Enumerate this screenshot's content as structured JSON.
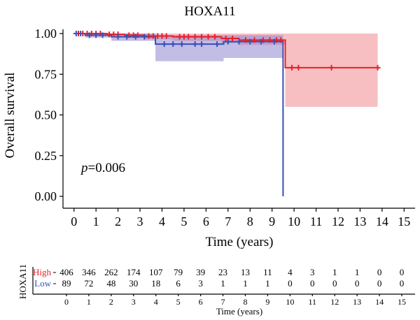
{
  "chart_data": {
    "type": "line",
    "title": "HOXA11",
    "xlabel": "Time (years)",
    "ylabel": "Overall survival",
    "xlim": [
      -0.5,
      15.5
    ],
    "ylim": [
      0,
      1
    ],
    "x_ticks": [
      "0",
      "1",
      "2",
      "3",
      "4",
      "5",
      "6",
      "7",
      "8",
      "9",
      "10",
      "11",
      "12",
      "13",
      "14",
      "15"
    ],
    "y_ticks": [
      "0.00",
      "0.25",
      "0.50",
      "0.75",
      "1.00"
    ],
    "p_label": "p",
    "p_value": "=0.006",
    "series": [
      {
        "name": "High",
        "color": "#e8202a",
        "band_color": "#f08a8f",
        "steps": [
          [
            0,
            1.0
          ],
          [
            1.5,
            0.995
          ],
          [
            2.3,
            0.99
          ],
          [
            3.2,
            0.985
          ],
          [
            4.5,
            0.98
          ],
          [
            6.7,
            0.97
          ],
          [
            7.5,
            0.96
          ],
          [
            9.6,
            0.79
          ],
          [
            13.8,
            0.79
          ]
        ],
        "band": [
          [
            0,
            1.0,
            1.0
          ],
          [
            1.5,
            1.0,
            0.985
          ],
          [
            2.3,
            1.0,
            0.975
          ],
          [
            3.2,
            1.0,
            0.965
          ],
          [
            4.5,
            1.0,
            0.955
          ],
          [
            6.7,
            1.0,
            0.94
          ],
          [
            7.5,
            1.0,
            0.93
          ],
          [
            9.6,
            1.0,
            0.55
          ],
          [
            13.8,
            1.0,
            0.55
          ]
        ],
        "censors": [
          [
            0.2,
            1.0
          ],
          [
            0.4,
            1.0
          ],
          [
            0.6,
            1.0
          ],
          [
            0.8,
            1.0
          ],
          [
            1.0,
            1.0
          ],
          [
            1.2,
            1.0
          ],
          [
            1.6,
            0.995
          ],
          [
            1.8,
            0.995
          ],
          [
            2.0,
            0.995
          ],
          [
            2.5,
            0.99
          ],
          [
            2.7,
            0.99
          ],
          [
            2.9,
            0.99
          ],
          [
            3.4,
            0.985
          ],
          [
            3.6,
            0.985
          ],
          [
            3.8,
            0.985
          ],
          [
            4.0,
            0.985
          ],
          [
            4.2,
            0.985
          ],
          [
            4.8,
            0.98
          ],
          [
            5.0,
            0.98
          ],
          [
            5.2,
            0.98
          ],
          [
            5.5,
            0.98
          ],
          [
            5.8,
            0.98
          ],
          [
            6.1,
            0.98
          ],
          [
            6.4,
            0.98
          ],
          [
            6.9,
            0.97
          ],
          [
            7.2,
            0.97
          ],
          [
            7.8,
            0.96
          ],
          [
            8.2,
            0.96
          ],
          [
            8.6,
            0.96
          ],
          [
            8.9,
            0.96
          ],
          [
            9.2,
            0.96
          ],
          [
            9.4,
            0.96
          ],
          [
            9.9,
            0.79
          ],
          [
            10.2,
            0.79
          ],
          [
            11.7,
            0.79
          ],
          [
            13.8,
            0.79
          ]
        ]
      },
      {
        "name": "Low",
        "color": "#3a4fb5",
        "band_color": "#8f86d0",
        "steps": [
          [
            0,
            1.0
          ],
          [
            0.5,
            0.99
          ],
          [
            1.7,
            0.98
          ],
          [
            3.7,
            0.935
          ],
          [
            6.8,
            0.95
          ],
          [
            9.5,
            0.0
          ]
        ],
        "band": [
          [
            0,
            1.0,
            1.0
          ],
          [
            0.5,
            1.0,
            0.975
          ],
          [
            1.7,
            1.0,
            0.955
          ],
          [
            3.7,
            0.99,
            0.83
          ],
          [
            6.8,
            0.99,
            0.85
          ],
          [
            9.5,
            0.99,
            0.85
          ]
        ],
        "censors": [
          [
            0.1,
            1.0
          ],
          [
            0.3,
            1.0
          ],
          [
            0.7,
            0.99
          ],
          [
            1.0,
            0.99
          ],
          [
            1.3,
            0.99
          ],
          [
            2.0,
            0.98
          ],
          [
            2.4,
            0.98
          ],
          [
            2.8,
            0.98
          ],
          [
            3.2,
            0.98
          ],
          [
            4.1,
            0.935
          ],
          [
            4.5,
            0.935
          ],
          [
            4.9,
            0.935
          ],
          [
            5.5,
            0.935
          ],
          [
            5.8,
            0.935
          ],
          [
            6.5,
            0.935
          ],
          [
            7.0,
            0.95
          ],
          [
            7.5,
            0.95
          ],
          [
            8.0,
            0.95
          ],
          [
            8.5,
            0.95
          ],
          [
            9.1,
            0.95
          ]
        ]
      }
    ],
    "risk_table": {
      "strata_title": "HOXA11",
      "xlabel": "Time (years)",
      "times": [
        "0",
        "1",
        "2",
        "3",
        "4",
        "5",
        "6",
        "7",
        "8",
        "9",
        "10",
        "11",
        "12",
        "13",
        "14",
        "15"
      ],
      "rows": [
        {
          "name": "High",
          "color": "#e8202a",
          "values": [
            "406",
            "346",
            "262",
            "174",
            "107",
            "79",
            "39",
            "23",
            "13",
            "11",
            "4",
            "3",
            "1",
            "1",
            "0",
            "0"
          ]
        },
        {
          "name": "Low",
          "color": "#3a4fb5",
          "values": [
            "89",
            "72",
            "48",
            "30",
            "18",
            "6",
            "3",
            "1",
            "1",
            "1",
            "0",
            "0",
            "0",
            "0",
            "0",
            "0"
          ]
        }
      ]
    }
  }
}
